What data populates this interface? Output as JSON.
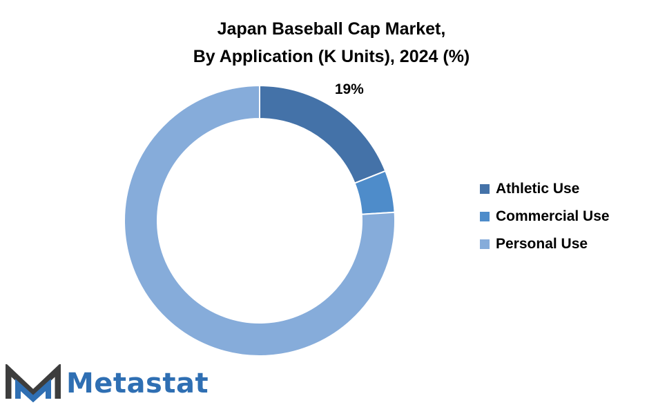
{
  "chart_data": {
    "type": "pie",
    "title_line1": "Japan Baseball Cap Market,",
    "title_line2": "By Application (K Units), 2024 (%)",
    "categories": [
      "Athletic Use",
      "Commercial Use",
      "Personal Use"
    ],
    "values": [
      19,
      5,
      76
    ],
    "colors": [
      "#4472a8",
      "#4e8cca",
      "#86acda"
    ],
    "data_labels": [
      "19%",
      "",
      ""
    ],
    "donut": true,
    "legend_position": "right"
  },
  "logo": {
    "text": "Metastat",
    "text_color": "#2f6fb3",
    "mark_colors": [
      "#3d3d3d",
      "#2f6fb3"
    ]
  }
}
